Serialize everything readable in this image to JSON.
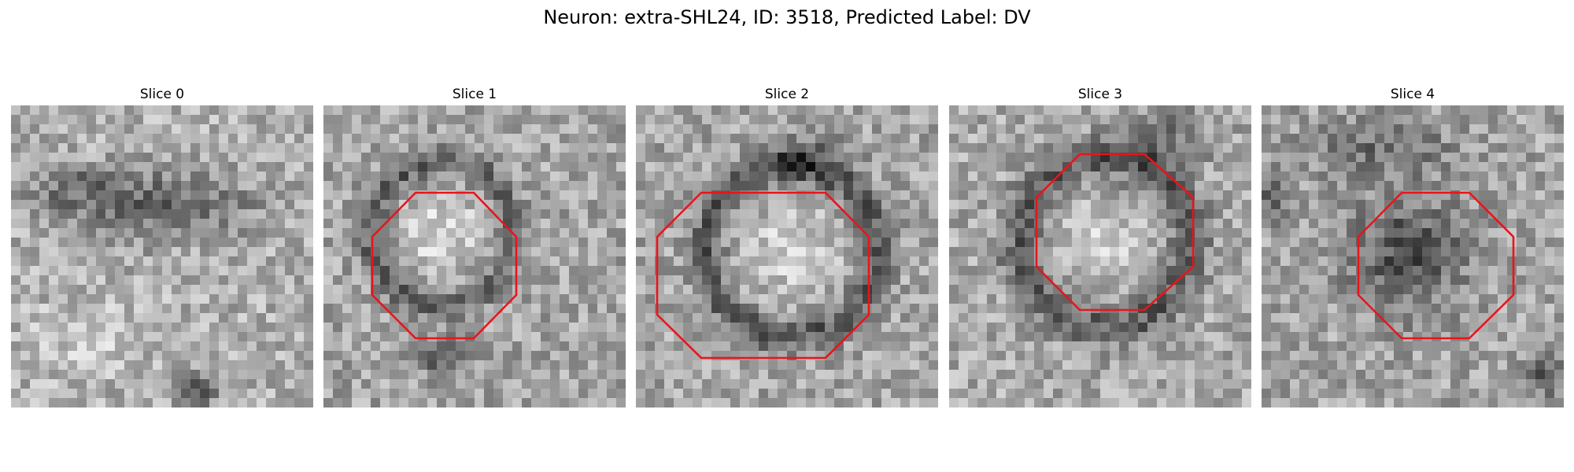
{
  "figure": {
    "title": "Neuron: extra-SHL24, ID: 3518, Predicted Label: DV"
  },
  "slices": [
    {
      "title": "Slice 0",
      "has_outline": false,
      "texture": "diffuse dark band across upper middle, noisy background"
    },
    {
      "title": "Slice 1",
      "has_outline": true,
      "texture": "bright soma surrounded by dark ring"
    },
    {
      "title": "Slice 2",
      "has_outline": true,
      "texture": "bright soma surrounded by dark ring"
    },
    {
      "title": "Slice 3",
      "has_outline": true,
      "texture": "dark ring around lighter center"
    },
    {
      "title": "Slice 4",
      "has_outline": true,
      "texture": "dark blob filling the outline"
    }
  ],
  "colors": {
    "outline": "#e8151b",
    "background": "#ffffff",
    "text": "#000000"
  }
}
